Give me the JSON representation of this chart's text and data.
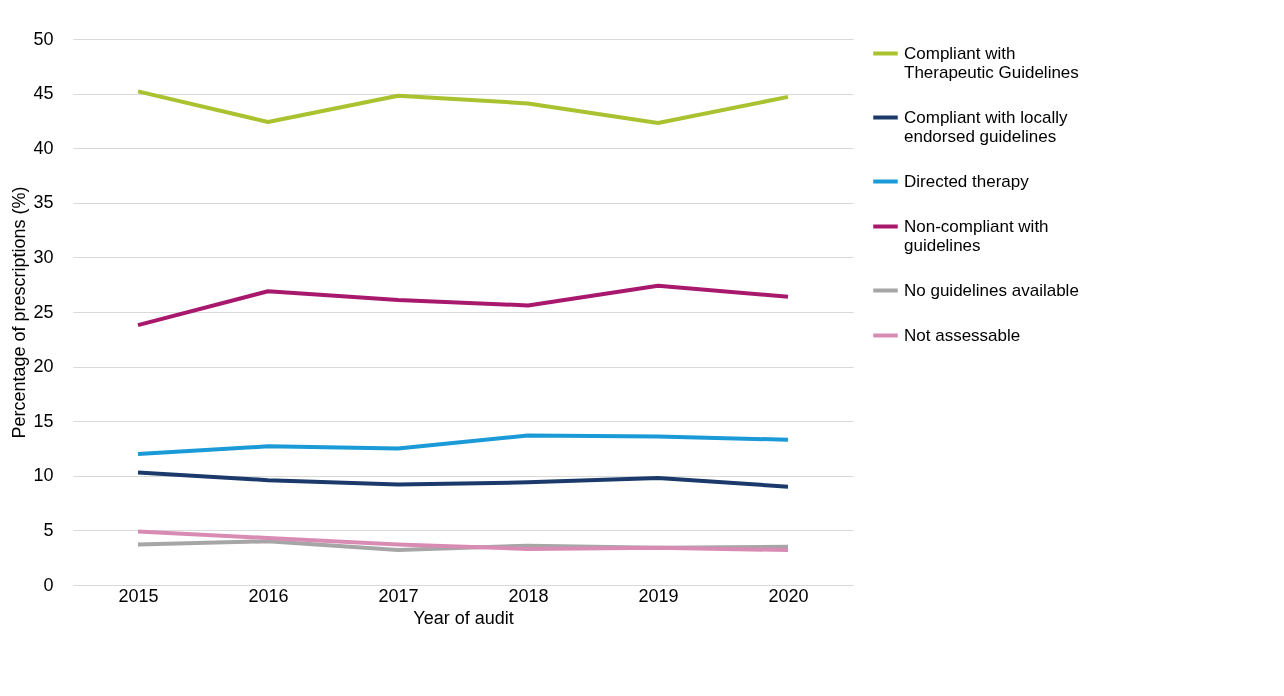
{
  "chart_data": {
    "type": "line",
    "xlabel": "Year of audit",
    "ylabel": "Percentage of prescriptions (%)",
    "categories": [
      "2015",
      "2016",
      "2017",
      "2018",
      "2019",
      "2020"
    ],
    "series": [
      {
        "name": "Compliant with Therapeutic Guidelines",
        "color": "#a9c22f",
        "values": [
          45.2,
          42.4,
          44.8,
          44.1,
          42.3,
          44.7
        ]
      },
      {
        "name": "Compliant with locally endorsed guidelines",
        "color": "#1b3a6b",
        "values": [
          10.3,
          9.6,
          9.2,
          9.4,
          9.8,
          9.0
        ]
      },
      {
        "name": "Directed therapy",
        "color": "#1a9ad6",
        "values": [
          12.0,
          12.7,
          12.5,
          13.7,
          13.6,
          13.3
        ]
      },
      {
        "name": "Non-compliant with guidelines",
        "color": "#a8196e",
        "values": [
          23.8,
          26.9,
          26.1,
          25.6,
          27.4,
          26.4
        ]
      },
      {
        "name": "No guidelines available",
        "color": "#a6a6a6",
        "values": [
          3.7,
          4.0,
          3.2,
          3.6,
          3.4,
          3.5
        ]
      },
      {
        "name": "Not assessable",
        "color": "#d98cb3",
        "values": [
          4.9,
          4.3,
          3.7,
          3.3,
          3.4,
          3.2
        ]
      }
    ],
    "ylim": [
      0,
      50
    ],
    "yticks": [
      0,
      5,
      10,
      15,
      20,
      25,
      30,
      35,
      40,
      45,
      50
    ],
    "grid": "y",
    "legend": "right",
    "marker": "none",
    "line_style": "solid"
  }
}
